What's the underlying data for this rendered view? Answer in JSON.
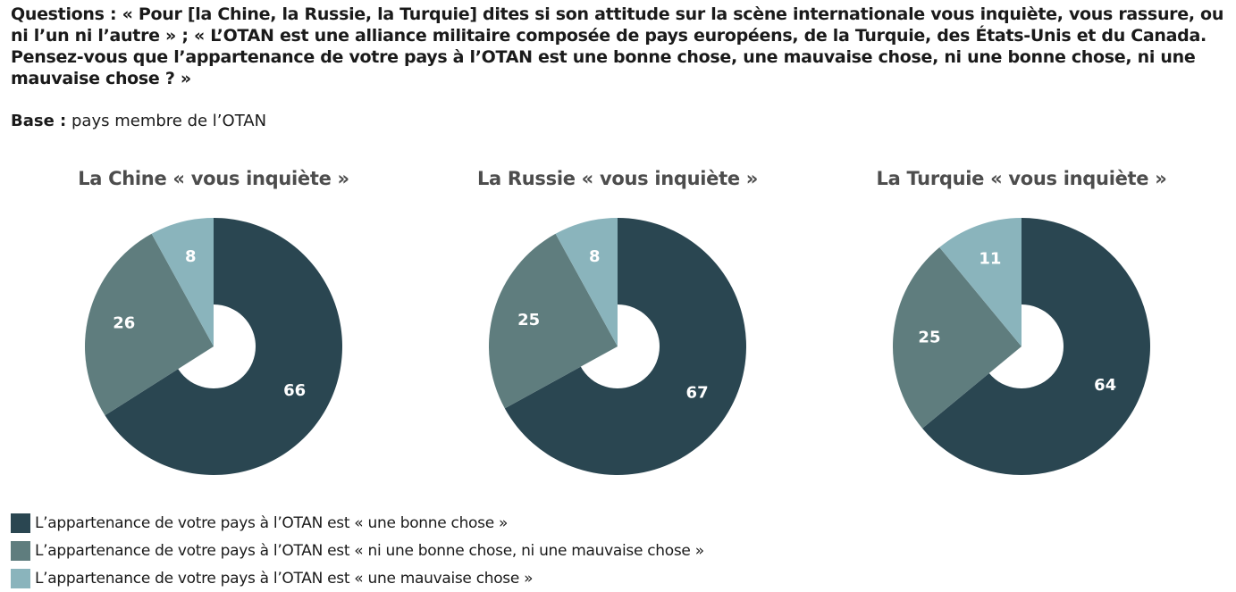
{
  "header": {
    "questions_label": "Questions :",
    "questions_text": "« Pour [la Chine, la Russie, la Turquie] dites si son attitude sur la scène internationale vous inquiète, vous rassure, ou ni l’un ni l’autre » ; « L’OTAN est une alliance militaire composée de pays européens, de la Turquie, des États-Unis et du Canada. Pensez-vous que l’appartenance de votre pays à l’OTAN est une bonne chose, une mauvaise chose, ni une bonne chose, ni une mauvaise chose ? »",
    "base_label": "Base :",
    "base_text": "pays membre de l’OTAN"
  },
  "colors": {
    "good": "#2a4651",
    "neither": "#5f7d7e",
    "bad": "#8ab4bc"
  },
  "chart_data": [
    {
      "type": "pie",
      "title": "La Chine « vous inquiète »",
      "categories": [
        "une bonne chose",
        "ni une bonne chose, ni une mauvaise chose",
        "une mauvaise chose"
      ],
      "values": [
        66,
        26,
        8
      ]
    },
    {
      "type": "pie",
      "title": "La Russie « vous inquiète »",
      "categories": [
        "une bonne chose",
        "ni une bonne chose, ni une mauvaise chose",
        "une mauvaise chose"
      ],
      "values": [
        67,
        25,
        8
      ]
    },
    {
      "type": "pie",
      "title": "La Turquie « vous inquiète »",
      "categories": [
        "une bonne chose",
        "ni une bonne chose, ni une mauvaise chose",
        "une mauvaise chose"
      ],
      "values": [
        64,
        25,
        11
      ]
    }
  ],
  "legend": [
    "L’appartenance de votre pays à l’OTAN est « une bonne chose »",
    "L’appartenance de votre pays à l’OTAN est « ni une bonne chose, ni une mauvaise chose »",
    "L’appartenance de votre pays à l’OTAN est « une mauvaise chose »"
  ]
}
